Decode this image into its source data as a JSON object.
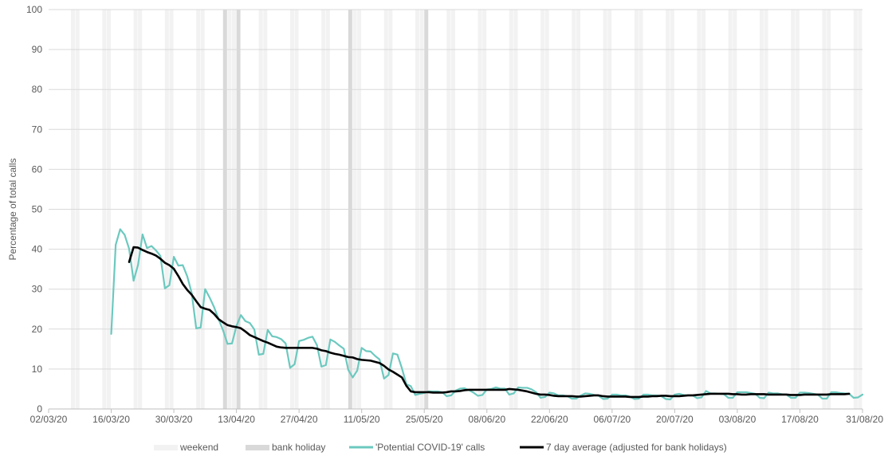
{
  "chart_data": {
    "type": "line",
    "ylabel": "Percentage of total calls",
    "xlabel": "",
    "ylim": [
      0,
      100
    ],
    "yticks": [
      0,
      10,
      20,
      30,
      40,
      50,
      60,
      70,
      80,
      90,
      100
    ],
    "xlim": [
      "2020-03-02",
      "2020-08-31"
    ],
    "xtick_labels": [
      "02/03/20",
      "16/03/20",
      "30/03/20",
      "13/04/20",
      "27/04/20",
      "11/05/20",
      "25/05/20",
      "08/06/20",
      "22/06/20",
      "06/07/20",
      "20/07/20",
      "03/08/20",
      "17/08/20",
      "31/08/20"
    ],
    "xtick_dates": [
      "2020-03-02",
      "2020-03-16",
      "2020-03-30",
      "2020-04-13",
      "2020-04-27",
      "2020-05-11",
      "2020-05-25",
      "2020-06-08",
      "2020-06-22",
      "2020-07-06",
      "2020-07-20",
      "2020-08-03",
      "2020-08-17",
      "2020-08-31"
    ],
    "grid": "horizontal",
    "legend_position": "bottom",
    "weekend_bands": [
      "2020-03-07",
      "2020-03-08",
      "2020-03-14",
      "2020-03-15",
      "2020-03-21",
      "2020-03-22",
      "2020-03-28",
      "2020-03-29",
      "2020-04-04",
      "2020-04-05",
      "2020-04-11",
      "2020-04-12",
      "2020-04-18",
      "2020-04-19",
      "2020-04-25",
      "2020-04-26",
      "2020-05-02",
      "2020-05-03",
      "2020-05-09",
      "2020-05-10",
      "2020-05-16",
      "2020-05-17",
      "2020-05-23",
      "2020-05-24",
      "2020-05-30",
      "2020-05-31",
      "2020-06-06",
      "2020-06-07",
      "2020-06-13",
      "2020-06-14",
      "2020-06-20",
      "2020-06-21",
      "2020-06-27",
      "2020-06-28",
      "2020-07-04",
      "2020-07-05",
      "2020-07-11",
      "2020-07-12",
      "2020-07-18",
      "2020-07-19",
      "2020-07-25",
      "2020-07-26",
      "2020-08-01",
      "2020-08-02",
      "2020-08-08",
      "2020-08-09",
      "2020-08-15",
      "2020-08-16",
      "2020-08-22",
      "2020-08-23",
      "2020-08-29",
      "2020-08-30"
    ],
    "bank_holiday_bands": [
      "2020-04-10",
      "2020-04-13",
      "2020-05-08",
      "2020-05-25",
      "2020-08-31"
    ],
    "series": [
      {
        "name": "'Potential COVID-19' calls",
        "color": "#6cc9bf",
        "x": [
          "2020-03-16",
          "2020-03-17",
          "2020-03-18",
          "2020-03-19",
          "2020-03-20",
          "2020-03-21",
          "2020-03-22",
          "2020-03-23",
          "2020-03-24",
          "2020-03-25",
          "2020-03-26",
          "2020-03-27",
          "2020-03-28",
          "2020-03-29",
          "2020-03-30",
          "2020-03-31",
          "2020-04-01",
          "2020-04-02",
          "2020-04-03",
          "2020-04-04",
          "2020-04-05",
          "2020-04-06",
          "2020-04-07",
          "2020-04-08",
          "2020-04-09",
          "2020-04-10",
          "2020-04-11",
          "2020-04-12",
          "2020-04-13",
          "2020-04-14",
          "2020-04-15",
          "2020-04-16",
          "2020-04-17",
          "2020-04-18",
          "2020-04-19",
          "2020-04-20",
          "2020-04-21",
          "2020-04-22",
          "2020-04-23",
          "2020-04-24",
          "2020-04-25",
          "2020-04-26",
          "2020-04-27",
          "2020-04-28",
          "2020-04-29",
          "2020-04-30",
          "2020-05-01",
          "2020-05-02",
          "2020-05-03",
          "2020-05-04",
          "2020-05-05",
          "2020-05-06",
          "2020-05-07",
          "2020-05-08",
          "2020-05-09",
          "2020-05-10",
          "2020-05-11",
          "2020-05-12",
          "2020-05-13",
          "2020-05-14",
          "2020-05-15",
          "2020-05-16",
          "2020-05-17",
          "2020-05-18",
          "2020-05-19",
          "2020-05-20",
          "2020-05-21",
          "2020-05-22",
          "2020-05-23",
          "2020-05-24",
          "2020-05-25",
          "2020-05-26",
          "2020-05-27",
          "2020-05-28",
          "2020-05-29",
          "2020-05-30",
          "2020-05-31",
          "2020-06-01",
          "2020-06-02",
          "2020-06-03",
          "2020-06-04",
          "2020-06-05",
          "2020-06-06",
          "2020-06-07",
          "2020-06-08",
          "2020-06-09",
          "2020-06-10",
          "2020-06-11",
          "2020-06-12",
          "2020-06-13",
          "2020-06-14",
          "2020-06-15",
          "2020-06-16",
          "2020-06-17",
          "2020-06-18",
          "2020-06-19",
          "2020-06-20",
          "2020-06-21",
          "2020-06-22",
          "2020-06-23",
          "2020-06-24",
          "2020-06-25",
          "2020-06-26",
          "2020-06-27",
          "2020-06-28",
          "2020-06-29",
          "2020-06-30",
          "2020-07-01",
          "2020-07-02",
          "2020-07-03",
          "2020-07-04",
          "2020-07-05",
          "2020-07-06",
          "2020-07-07",
          "2020-07-08",
          "2020-07-09",
          "2020-07-10",
          "2020-07-11",
          "2020-07-12",
          "2020-07-13",
          "2020-07-14",
          "2020-07-15",
          "2020-07-16",
          "2020-07-17",
          "2020-07-18",
          "2020-07-19",
          "2020-07-20",
          "2020-07-21",
          "2020-07-22",
          "2020-07-23",
          "2020-07-24",
          "2020-07-25",
          "2020-07-26",
          "2020-07-27",
          "2020-07-28",
          "2020-07-29",
          "2020-07-30",
          "2020-07-31",
          "2020-08-01",
          "2020-08-02",
          "2020-08-03",
          "2020-08-04",
          "2020-08-05",
          "2020-08-06",
          "2020-08-07",
          "2020-08-08",
          "2020-08-09",
          "2020-08-10",
          "2020-08-11",
          "2020-08-12",
          "2020-08-13",
          "2020-08-14",
          "2020-08-15",
          "2020-08-16",
          "2020-08-17",
          "2020-08-18",
          "2020-08-19",
          "2020-08-20",
          "2020-08-21",
          "2020-08-22",
          "2020-08-23",
          "2020-08-24",
          "2020-08-25",
          "2020-08-26",
          "2020-08-27",
          "2020-08-28",
          "2020-08-29",
          "2020-08-30",
          "2020-08-31"
        ],
        "y": [
          18.8,
          41.1,
          45.0,
          43.6,
          40.1,
          32.1,
          36.1,
          43.7,
          40.3,
          40.8,
          39.7,
          38.3,
          30.2,
          31.0,
          38.1,
          35.9,
          36.0,
          33.2,
          29.0,
          20.2,
          20.4,
          30.0,
          27.9,
          25.5,
          22.5,
          19.7,
          16.3,
          16.4,
          20.8,
          23.5,
          22.0,
          21.5,
          19.9,
          13.6,
          13.8,
          19.8,
          18.2,
          18.0,
          17.5,
          16.4,
          10.3,
          11.2,
          17.0,
          17.3,
          17.8,
          18.1,
          16.0,
          10.6,
          11.0,
          17.4,
          16.8,
          15.9,
          15.1,
          9.8,
          7.9,
          9.6,
          15.3,
          14.5,
          14.4,
          13.3,
          12.4,
          7.6,
          8.5,
          13.9,
          13.6,
          10.2,
          6.2,
          5.7,
          3.5,
          3.8,
          4.0,
          4.4,
          4.4,
          4.4,
          4.2,
          3.2,
          3.4,
          4.6,
          5.1,
          5.2,
          4.7,
          4.1,
          3.3,
          3.5,
          4.9,
          5.0,
          5.4,
          5.1,
          5.1,
          3.6,
          3.9,
          5.4,
          5.3,
          5.3,
          4.9,
          4.2,
          2.8,
          3.0,
          4.1,
          3.9,
          3.4,
          3.4,
          3.2,
          2.6,
          2.6,
          3.4,
          3.9,
          3.8,
          3.5,
          3.3,
          2.5,
          2.6,
          3.6,
          3.6,
          3.4,
          3.4,
          3.1,
          2.5,
          2.6,
          3.6,
          3.6,
          3.4,
          3.4,
          3.2,
          2.5,
          2.4,
          3.6,
          3.8,
          3.5,
          3.4,
          3.4,
          2.7,
          2.9,
          4.5,
          3.9,
          3.9,
          3.8,
          3.7,
          2.8,
          2.8,
          4.2,
          4.2,
          4.2,
          4.0,
          3.8,
          2.8,
          2.7,
          4.1,
          3.9,
          3.9,
          3.7,
          3.6,
          2.8,
          2.8,
          4.1,
          4.1,
          4.0,
          3.8,
          3.6,
          2.6,
          2.6,
          4.2,
          4.2,
          4.0,
          3.9,
          3.8,
          2.8,
          2.9,
          3.6
        ]
      },
      {
        "name": "7 day average (adjusted for bank holidays)",
        "color": "#000000",
        "x": [
          "2020-03-20",
          "2020-03-21",
          "2020-03-22",
          "2020-03-23",
          "2020-03-24",
          "2020-03-25",
          "2020-03-26",
          "2020-03-27",
          "2020-03-28",
          "2020-03-29",
          "2020-03-30",
          "2020-03-31",
          "2020-04-01",
          "2020-04-02",
          "2020-04-03",
          "2020-04-04",
          "2020-04-05",
          "2020-04-06",
          "2020-04-07",
          "2020-04-08",
          "2020-04-09",
          "2020-04-10",
          "2020-04-11",
          "2020-04-12",
          "2020-04-13",
          "2020-04-14",
          "2020-04-15",
          "2020-04-16",
          "2020-04-17",
          "2020-04-18",
          "2020-04-19",
          "2020-04-20",
          "2020-04-21",
          "2020-04-22",
          "2020-04-23",
          "2020-04-24",
          "2020-04-25",
          "2020-04-26",
          "2020-04-27",
          "2020-04-28",
          "2020-04-29",
          "2020-04-30",
          "2020-05-01",
          "2020-05-02",
          "2020-05-03",
          "2020-05-04",
          "2020-05-05",
          "2020-05-06",
          "2020-05-07",
          "2020-05-08",
          "2020-05-09",
          "2020-05-10",
          "2020-05-11",
          "2020-05-12",
          "2020-05-13",
          "2020-05-14",
          "2020-05-15",
          "2020-05-16",
          "2020-05-17",
          "2020-05-18",
          "2020-05-19",
          "2020-05-20",
          "2020-05-21",
          "2020-05-22",
          "2020-05-23",
          "2020-05-24",
          "2020-05-25",
          "2020-05-26",
          "2020-05-27",
          "2020-05-28",
          "2020-05-29",
          "2020-05-30",
          "2020-05-31",
          "2020-06-01",
          "2020-06-02",
          "2020-06-03",
          "2020-06-04",
          "2020-06-05",
          "2020-06-06",
          "2020-06-07",
          "2020-06-08",
          "2020-06-09",
          "2020-06-10",
          "2020-06-11",
          "2020-06-12",
          "2020-06-13",
          "2020-06-14",
          "2020-06-15",
          "2020-06-16",
          "2020-06-17",
          "2020-06-18",
          "2020-06-19",
          "2020-06-20",
          "2020-06-21",
          "2020-06-22",
          "2020-06-23",
          "2020-06-24",
          "2020-06-25",
          "2020-06-26",
          "2020-06-27",
          "2020-06-28",
          "2020-06-29",
          "2020-06-30",
          "2020-07-01",
          "2020-07-02",
          "2020-07-03",
          "2020-07-04",
          "2020-07-05",
          "2020-07-06",
          "2020-07-07",
          "2020-07-08",
          "2020-07-09",
          "2020-07-10",
          "2020-07-11",
          "2020-07-12",
          "2020-07-13",
          "2020-07-14",
          "2020-07-15",
          "2020-07-16",
          "2020-07-17",
          "2020-07-18",
          "2020-07-19",
          "2020-07-20",
          "2020-07-21",
          "2020-07-22",
          "2020-07-23",
          "2020-07-24",
          "2020-07-25",
          "2020-07-26",
          "2020-07-27",
          "2020-07-28",
          "2020-07-29",
          "2020-07-30",
          "2020-07-31",
          "2020-08-01",
          "2020-08-02",
          "2020-08-03",
          "2020-08-04",
          "2020-08-05",
          "2020-08-06",
          "2020-08-07",
          "2020-08-08",
          "2020-08-09",
          "2020-08-10",
          "2020-08-11",
          "2020-08-12",
          "2020-08-13",
          "2020-08-14",
          "2020-08-15",
          "2020-08-16",
          "2020-08-17",
          "2020-08-18",
          "2020-08-19",
          "2020-08-20",
          "2020-08-21",
          "2020-08-22",
          "2020-08-23",
          "2020-08-24",
          "2020-08-25",
          "2020-08-26",
          "2020-08-27",
          "2020-08-28"
        ],
        "y": [
          36.8,
          40.5,
          40.4,
          39.8,
          39.3,
          38.9,
          38.4,
          37.6,
          36.6,
          36.0,
          35.1,
          33.3,
          31.3,
          29.8,
          28.6,
          27.0,
          25.5,
          25.1,
          24.8,
          23.8,
          22.5,
          21.7,
          21.0,
          20.7,
          20.5,
          20.2,
          19.4,
          18.5,
          18.0,
          17.5,
          17.0,
          16.6,
          16.1,
          15.6,
          15.4,
          15.3,
          15.3,
          15.3,
          15.3,
          15.3,
          15.3,
          15.3,
          15.1,
          14.7,
          14.5,
          14.1,
          13.8,
          13.6,
          13.3,
          13.0,
          12.9,
          12.5,
          12.3,
          12.2,
          12.1,
          11.8,
          11.5,
          10.8,
          9.9,
          9.3,
          8.6,
          7.9,
          5.8,
          4.4,
          4.2,
          4.2,
          4.2,
          4.2,
          4.1,
          4.1,
          4.1,
          4.2,
          4.4,
          4.4,
          4.5,
          4.7,
          4.8,
          4.8,
          4.8,
          4.8,
          4.8,
          4.8,
          4.8,
          4.8,
          4.8,
          5.0,
          4.9,
          4.8,
          4.6,
          4.4,
          4.1,
          3.8,
          3.6,
          3.6,
          3.5,
          3.3,
          3.2,
          3.2,
          3.2,
          3.2,
          3.1,
          3.1,
          3.2,
          3.3,
          3.4,
          3.4,
          3.2,
          3.1,
          3.1,
          3.1,
          3.1,
          3.1,
          3.0,
          3.0,
          3.0,
          3.1,
          3.1,
          3.2,
          3.2,
          3.3,
          3.3,
          3.2,
          3.2,
          3.2,
          3.3,
          3.4,
          3.4,
          3.5,
          3.6,
          3.7,
          3.8,
          3.8,
          3.8,
          3.8,
          3.8,
          3.7,
          3.7,
          3.6,
          3.6,
          3.7,
          3.7,
          3.7,
          3.7,
          3.6,
          3.6,
          3.6,
          3.6,
          3.6,
          3.5,
          3.5,
          3.5,
          3.6,
          3.6,
          3.6,
          3.6,
          3.6,
          3.6,
          3.7,
          3.7,
          3.7,
          3.7,
          3.8
        ]
      }
    ],
    "legend": [
      {
        "label": "weekend",
        "kind": "band",
        "color": "#f2f2f2"
      },
      {
        "label": "bank holiday",
        "kind": "band",
        "color": "#d9d9d9"
      },
      {
        "label": "'Potential COVID-19' calls",
        "kind": "line",
        "color": "#6cc9bf"
      },
      {
        "label": "7 day average (adjusted for bank holidays)",
        "kind": "line",
        "color": "#000000"
      }
    ]
  }
}
